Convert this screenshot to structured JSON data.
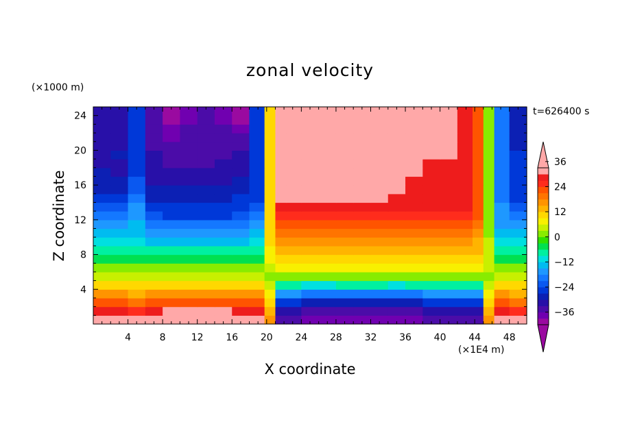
{
  "chart_data": {
    "type": "heatmap",
    "title": "zonal velocity",
    "xlabel": "X coordinate",
    "ylabel": "Z coordinate",
    "x_unit": "(×1E4 m)",
    "y_unit": "(×1000 m)",
    "annotation": "t=626400 s",
    "xlim": [
      0,
      50
    ],
    "ylim": [
      0,
      25
    ],
    "x_ticks": [
      4,
      8,
      12,
      16,
      20,
      24,
      28,
      32,
      36,
      40,
      44,
      48
    ],
    "y_ticks": [
      4,
      8,
      12,
      16,
      20,
      24
    ],
    "colorbar": {
      "ticks": [
        36,
        24,
        12,
        0,
        -12,
        -24,
        -36
      ],
      "levels": [
        -42,
        -39,
        -36,
        -33,
        -30,
        -27,
        -24,
        -21,
        -18,
        -15,
        -12,
        -9,
        -6,
        -3,
        0,
        3,
        6,
        9,
        12,
        15,
        18,
        21,
        24,
        27,
        30,
        33,
        36,
        39,
        42
      ],
      "colors": [
        "#9a0aa0",
        "#7000b0",
        "#4b0ca8",
        "#2810a8",
        "#0c20b4",
        "#0038d8",
        "#0a58f0",
        "#1478ff",
        "#1e98ff",
        "#00bcf0",
        "#00e0e0",
        "#00f0a0",
        "#00e050",
        "#30e000",
        "#88ec00",
        "#c8f000",
        "#f8f000",
        "#ffd800",
        "#ffb400",
        "#ff9400",
        "#ff7400",
        "#ff5400",
        "#ff2c1c",
        "#ee1c1c",
        "#ffa8a8"
      ],
      "under_color": "#9a0aa0",
      "over_color": "#ffa8a8"
    },
    "rows_z": [
      0.5,
      1.5,
      2.5,
      3.5,
      4.5,
      5.5,
      6.5,
      7.5,
      8.5,
      9.5,
      10.5,
      11.5,
      12.5,
      13.5,
      14.5,
      15.5,
      16.5,
      17.5,
      18.5,
      19.5,
      20.5,
      21.5,
      22.5,
      23.5,
      24.5
    ],
    "cols_x": [
      1,
      3,
      5,
      7,
      9,
      11,
      13,
      15,
      17,
      19,
      20.5,
      21.5,
      23,
      25,
      27,
      29,
      31,
      33,
      35,
      37,
      39,
      41,
      43,
      44.5,
      45.5,
      47,
      49
    ],
    "values": [
      [
        33,
        33,
        30,
        33,
        36,
        36,
        36,
        36,
        33,
        33,
        15,
        -36,
        -36,
        -39,
        -39,
        -39,
        -39,
        -39,
        -39,
        -39,
        -36,
        -36,
        -36,
        -36,
        15,
        33,
        30
      ],
      [
        27,
        27,
        24,
        27,
        30,
        30,
        30,
        30,
        27,
        27,
        12,
        -33,
        -33,
        -36,
        -36,
        -36,
        -36,
        -36,
        -36,
        -36,
        -33,
        -33,
        -33,
        -33,
        12,
        27,
        24
      ],
      [
        21,
        21,
        18,
        21,
        21,
        21,
        21,
        21,
        21,
        21,
        9,
        -27,
        -27,
        -30,
        -30,
        -30,
        -30,
        -30,
        -30,
        -30,
        -27,
        -27,
        -27,
        -27,
        9,
        21,
        18
      ],
      [
        15,
        15,
        12,
        15,
        15,
        15,
        15,
        15,
        15,
        15,
        6,
        -18,
        -18,
        -21,
        -21,
        -21,
        -21,
        -21,
        -21,
        -21,
        -18,
        -18,
        -18,
        -18,
        6,
        15,
        12
      ],
      [
        9,
        9,
        9,
        9,
        9,
        9,
        9,
        9,
        9,
        9,
        3,
        -9,
        -9,
        -12,
        -12,
        -9,
        -9,
        -9,
        -12,
        -9,
        -9,
        -9,
        -9,
        -9,
        3,
        9,
        9
      ],
      [
        3,
        3,
        3,
        3,
        3,
        3,
        3,
        3,
        3,
        3,
        0,
        0,
        0,
        0,
        0,
        0,
        0,
        0,
        0,
        0,
        0,
        0,
        0,
        0,
        0,
        3,
        3
      ],
      [
        0,
        0,
        0,
        0,
        0,
        0,
        0,
        0,
        0,
        0,
        3,
        6,
        6,
        6,
        6,
        6,
        6,
        6,
        6,
        6,
        6,
        6,
        6,
        6,
        3,
        0,
        0
      ],
      [
        -6,
        -6,
        -6,
        -6,
        -6,
        -6,
        -6,
        -6,
        -6,
        -6,
        6,
        9,
        9,
        9,
        9,
        9,
        9,
        9,
        9,
        9,
        9,
        9,
        9,
        9,
        3,
        -6,
        -6
      ],
      [
        -9,
        -9,
        -9,
        -9,
        -9,
        -9,
        -9,
        -9,
        -9,
        -9,
        6,
        12,
        12,
        12,
        12,
        12,
        12,
        12,
        12,
        12,
        12,
        12,
        12,
        12,
        3,
        -9,
        -9
      ],
      [
        -12,
        -12,
        -12,
        -15,
        -15,
        -15,
        -15,
        -15,
        -15,
        -12,
        9,
        15,
        15,
        15,
        15,
        15,
        15,
        15,
        15,
        15,
        15,
        15,
        15,
        12,
        3,
        -12,
        -12
      ],
      [
        -15,
        -15,
        -15,
        -18,
        -18,
        -18,
        -18,
        -18,
        -18,
        -15,
        9,
        18,
        18,
        18,
        18,
        18,
        18,
        18,
        18,
        18,
        18,
        18,
        18,
        15,
        0,
        -15,
        -15
      ],
      [
        -18,
        -18,
        -15,
        -21,
        -21,
        -21,
        -21,
        -21,
        -21,
        -18,
        9,
        21,
        21,
        21,
        21,
        21,
        21,
        21,
        21,
        21,
        21,
        21,
        21,
        18,
        0,
        -18,
        -18
      ],
      [
        -21,
        -21,
        -18,
        -24,
        -27,
        -27,
        -27,
        -27,
        -24,
        -21,
        9,
        24,
        24,
        24,
        24,
        24,
        24,
        24,
        24,
        24,
        24,
        24,
        24,
        21,
        0,
        -18,
        -21
      ],
      [
        -24,
        -24,
        -18,
        -27,
        -27,
        -27,
        -27,
        -27,
        -27,
        -24,
        9,
        27,
        27,
        27,
        27,
        27,
        27,
        27,
        27,
        27,
        27,
        27,
        27,
        21,
        0,
        -18,
        -24
      ],
      [
        -27,
        -27,
        -21,
        -30,
        -30,
        -30,
        -30,
        -30,
        -27,
        -27,
        9,
        30,
        30,
        30,
        30,
        30,
        30,
        30,
        27,
        27,
        27,
        27,
        27,
        21,
        0,
        -21,
        -27
      ],
      [
        -30,
        -30,
        -24,
        -30,
        -30,
        -30,
        -30,
        -30,
        -30,
        -27,
        9,
        30,
        33,
        33,
        33,
        33,
        33,
        33,
        30,
        27,
        27,
        27,
        27,
        21,
        0,
        -21,
        -27
      ],
      [
        -30,
        -30,
        -24,
        -33,
        -33,
        -33,
        -33,
        -33,
        -30,
        -27,
        9,
        30,
        33,
        33,
        33,
        33,
        33,
        33,
        30,
        27,
        27,
        27,
        27,
        21,
        0,
        -21,
        -27
      ],
      [
        -30,
        -33,
        -27,
        -33,
        -33,
        -33,
        -33,
        -33,
        -33,
        -27,
        9,
        33,
        33,
        33,
        33,
        33,
        33,
        33,
        33,
        30,
        27,
        27,
        27,
        21,
        0,
        -21,
        -27
      ],
      [
        -33,
        -33,
        -27,
        -33,
        -36,
        -36,
        -36,
        -33,
        -33,
        -27,
        9,
        33,
        33,
        36,
        36,
        36,
        36,
        36,
        33,
        30,
        27,
        27,
        27,
        21,
        0,
        -21,
        -27
      ],
      [
        -33,
        -30,
        -27,
        -33,
        -36,
        -36,
        -36,
        -36,
        -33,
        -27,
        9,
        33,
        33,
        36,
        36,
        36,
        36,
        36,
        33,
        30,
        30,
        30,
        27,
        21,
        0,
        -21,
        -27
      ],
      [
        -33,
        -33,
        -27,
        -36,
        -36,
        -36,
        -36,
        -36,
        -36,
        -27,
        9,
        33,
        33,
        36,
        39,
        36,
        39,
        36,
        33,
        33,
        30,
        30,
        27,
        21,
        0,
        -21,
        -30
      ],
      [
        -33,
        -33,
        -27,
        -36,
        -39,
        -36,
        -36,
        -36,
        -36,
        -27,
        9,
        33,
        36,
        39,
        42,
        36,
        42,
        39,
        33,
        33,
        30,
        30,
        27,
        21,
        0,
        -21,
        -30
      ],
      [
        -33,
        -33,
        -27,
        -36,
        -39,
        -36,
        -36,
        -36,
        -39,
        -27,
        9,
        33,
        36,
        42,
        42,
        36,
        42,
        42,
        36,
        33,
        30,
        30,
        27,
        21,
        0,
        -21,
        -30
      ],
      [
        -33,
        -33,
        -27,
        -36,
        -42,
        -39,
        -36,
        -39,
        -42,
        -27,
        9,
        33,
        36,
        42,
        42,
        39,
        42,
        42,
        36,
        33,
        30,
        30,
        27,
        21,
        0,
        -21,
        -30
      ],
      [
        -33,
        -33,
        -27,
        -36,
        -42,
        -39,
        -36,
        -39,
        -42,
        -27,
        9,
        33,
        36,
        42,
        42,
        39,
        42,
        42,
        36,
        33,
        30,
        30,
        27,
        21,
        0,
        -21,
        -30
      ]
    ]
  }
}
